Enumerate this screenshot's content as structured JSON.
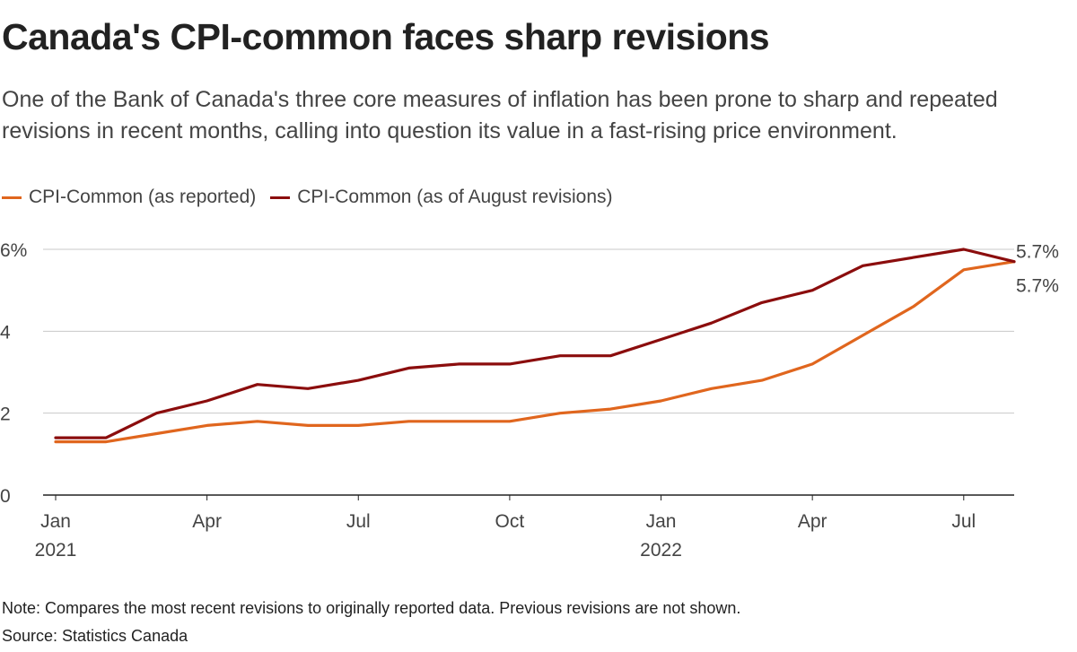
{
  "header": {
    "title": "Canada's CPI-common faces sharp revisions",
    "subtitle": "One of the Bank of Canada's three core measures of inflation has been prone to sharp and repeated revisions in recent months, calling into question its value in a fast-rising price environment."
  },
  "footer": {
    "note": "Note: Compares the most recent revisions to originally reported data. Previous revisions are not shown.",
    "source": "Source: Statistics Canada"
  },
  "chart_data": {
    "type": "line",
    "title": "Canada's CPI-common faces sharp revisions",
    "xlabel": "",
    "ylabel": "",
    "x": [
      "2021-01",
      "2021-02",
      "2021-03",
      "2021-04",
      "2021-05",
      "2021-06",
      "2021-07",
      "2021-08",
      "2021-09",
      "2021-10",
      "2021-11",
      "2021-12",
      "2022-01",
      "2022-02",
      "2022-03",
      "2022-04",
      "2022-05",
      "2022-06",
      "2022-07",
      "2022-08"
    ],
    "ylim": [
      0,
      6
    ],
    "y_ticks": [
      {
        "value": 0,
        "label": "0"
      },
      {
        "value": 2,
        "label": "2"
      },
      {
        "value": 4,
        "label": "4"
      },
      {
        "value": 6,
        "label": "6%"
      }
    ],
    "x_ticks": [
      {
        "x": "2021-01",
        "label": "Jan",
        "sublabel": "2021"
      },
      {
        "x": "2021-04",
        "label": "Apr",
        "sublabel": ""
      },
      {
        "x": "2021-07",
        "label": "Jul",
        "sublabel": ""
      },
      {
        "x": "2021-10",
        "label": "Oct",
        "sublabel": ""
      },
      {
        "x": "2022-01",
        "label": "Jan",
        "sublabel": "2022"
      },
      {
        "x": "2022-04",
        "label": "Apr",
        "sublabel": ""
      },
      {
        "x": "2022-07",
        "label": "Jul",
        "sublabel": ""
      }
    ],
    "grid": true,
    "legend_position": "top-left",
    "series": [
      {
        "name": "CPI-Common (as reported)",
        "color": "#e0661e",
        "values": [
          1.3,
          1.3,
          1.5,
          1.7,
          1.8,
          1.7,
          1.7,
          1.8,
          1.8,
          1.8,
          2.0,
          2.1,
          2.3,
          2.6,
          2.8,
          3.2,
          3.9,
          4.6,
          5.5,
          5.7
        ],
        "end_label": "5.7%"
      },
      {
        "name": "CPI-Common (as of August revisions)",
        "color": "#8b0d0d",
        "values": [
          1.4,
          1.4,
          2.0,
          2.3,
          2.7,
          2.6,
          2.8,
          3.1,
          3.2,
          3.2,
          3.4,
          3.4,
          3.8,
          4.2,
          4.7,
          5.0,
          5.6,
          5.8,
          6.0,
          5.7
        ],
        "end_label": "5.7%"
      }
    ]
  }
}
